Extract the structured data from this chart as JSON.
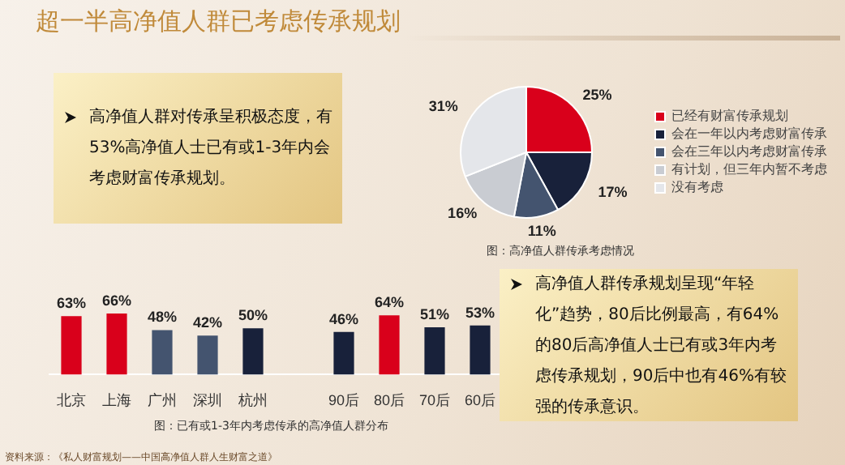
{
  "chart_data": [
    {
      "type": "other",
      "title": "超一半高净值人群已考虑传承规划",
      "annotations": [
        "高净值人群对传承呈积极态度，有53%高净值人士已有或1-3年内会考虑财富传承规划。"
      ]
    },
    {
      "type": "pie",
      "categories": [
        "已经有财富传承规划",
        "会在一年以内考虑财富传承",
        "会在三年以内考虑财富传承",
        "有计划，但三年内暂不考虑",
        "没有考虑"
      ],
      "values": [
        25,
        17,
        11,
        16,
        31
      ],
      "value_labels": [
        "25%",
        "17%",
        "11%",
        "16%",
        "31%"
      ],
      "colors": [
        "#d9001b",
        "#18213a",
        "#44546f",
        "#c9ccd2",
        "#e4e6ea"
      ],
      "legend": "right",
      "annotations": [
        "图：高净值人群传承考虑情况"
      ]
    },
    {
      "type": "bar",
      "categories": [
        "北京",
        "上海",
        "广州",
        "深圳",
        "杭州",
        null,
        "90后",
        "80后",
        "70后",
        "60后"
      ],
      "values": [
        63,
        66,
        48,
        42,
        50,
        null,
        46,
        64,
        51,
        53
      ],
      "value_labels": [
        "63%",
        "66%",
        "48%",
        "42%",
        "50%",
        null,
        "46%",
        "64%",
        "51%",
        "53%"
      ],
      "colors": [
        "#d9001b",
        "#d9001b",
        "#44546f",
        "#44546f",
        "#18213a",
        null,
        "#18213a",
        "#d9001b",
        "#18213a",
        "#18213a"
      ],
      "annotations": [
        "图：已有或1-3年内考虑传承的高净值人群分布",
        "资料来源：《私人财富规划——中国高净值人群人生财富之道》"
      ]
    },
    {
      "type": "other",
      "annotations": [
        "高净值人群传承规划呈现“年轻化”趋势，80后比例最高，有64%的80后高净值人士已有或3年内考虑传承规划，90后中也有46%有较强的传承意识。"
      ]
    }
  ]
}
